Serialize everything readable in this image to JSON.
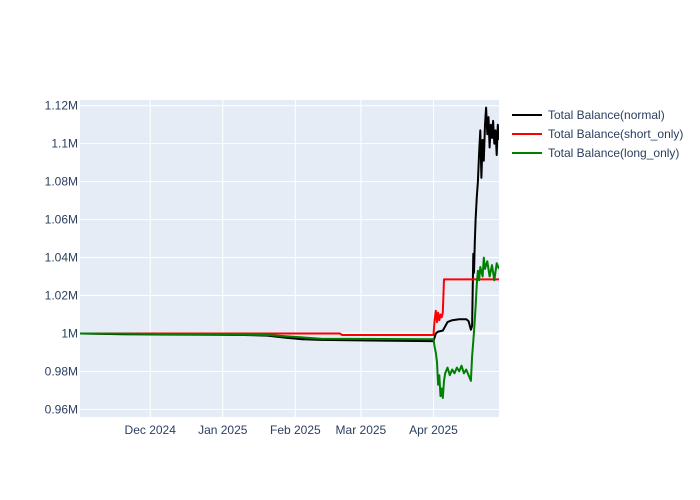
{
  "chart_data": {
    "type": "line",
    "title": "",
    "xlabel": "",
    "ylabel": "",
    "x_ticks": [
      {
        "date": "2024-12-01",
        "label": "Dec 2024"
      },
      {
        "date": "2025-01-01",
        "label": "Jan 2025"
      },
      {
        "date": "2025-02-01",
        "label": "Feb 2025"
      },
      {
        "date": "2025-03-01",
        "label": "Mar 2025"
      },
      {
        "date": "2025-04-01",
        "label": "Apr 2025"
      }
    ],
    "xlim": [
      "2024-11-01",
      "2025-04-29"
    ],
    "y_ticks": [
      {
        "value": 960000,
        "label": "0.96M"
      },
      {
        "value": 980000,
        "label": "0.98M"
      },
      {
        "value": 1000000,
        "label": "1M"
      },
      {
        "value": 1020000,
        "label": "1.02M"
      },
      {
        "value": 1040000,
        "label": "1.04M"
      },
      {
        "value": 1060000,
        "label": "1.06M"
      },
      {
        "value": 1080000,
        "label": "1.08M"
      },
      {
        "value": 1100000,
        "label": "1.1M"
      },
      {
        "value": 1120000,
        "label": "1.12M"
      }
    ],
    "ylim": [
      956000,
      1123000
    ],
    "grid": true,
    "legend_position": "top-right",
    "series": [
      {
        "name": "Total Balance(normal)",
        "color": "#000000",
        "points": [
          [
            "2024-11-01",
            1000000
          ],
          [
            "2024-11-20",
            999600
          ],
          [
            "2024-12-20",
            999400
          ],
          [
            "2025-01-10",
            999200
          ],
          [
            "2025-01-20",
            998900
          ],
          [
            "2025-01-28",
            997800
          ],
          [
            "2025-02-04",
            997000
          ],
          [
            "2025-02-12",
            996600
          ],
          [
            "2025-03-05",
            996300
          ],
          [
            "2025-03-31",
            996000
          ],
          [
            "2025-04-01",
            996000
          ],
          [
            "2025-04-02",
            1000000
          ],
          [
            "2025-04-03",
            1001000
          ],
          [
            "2025-04-05",
            1001500
          ],
          [
            "2025-04-07",
            1006000
          ],
          [
            "2025-04-09",
            1007000
          ],
          [
            "2025-04-12",
            1007500
          ],
          [
            "2025-04-15",
            1007500
          ],
          [
            "2025-04-16",
            1006500
          ],
          [
            "2025-04-17",
            1002000
          ],
          [
            "2025-04-17T12:00",
            1004000
          ],
          [
            "2025-04-18",
            1042000
          ],
          [
            "2025-04-18T08:00",
            1032000
          ],
          [
            "2025-04-18T16:00",
            1048000
          ],
          [
            "2025-04-19",
            1060000
          ],
          [
            "2025-04-19T12:00",
            1072000
          ],
          [
            "2025-04-20",
            1080000
          ],
          [
            "2025-04-20T12:00",
            1095000
          ],
          [
            "2025-04-21",
            1107000
          ],
          [
            "2025-04-21T12:00",
            1082000
          ],
          [
            "2025-04-22",
            1102000
          ],
          [
            "2025-04-22T12:00",
            1091000
          ],
          [
            "2025-04-23",
            1110000
          ],
          [
            "2025-04-23T12:00",
            1119000
          ],
          [
            "2025-04-24",
            1105000
          ],
          [
            "2025-04-24T12:00",
            1114000
          ],
          [
            "2025-04-25",
            1098000
          ],
          [
            "2025-04-25T12:00",
            1110000
          ],
          [
            "2025-04-26",
            1103000
          ],
          [
            "2025-04-26T12:00",
            1112000
          ],
          [
            "2025-04-27",
            1100000
          ],
          [
            "2025-04-27T12:00",
            1107000
          ],
          [
            "2025-04-28",
            1094000
          ],
          [
            "2025-04-28T12:00",
            1110000
          ],
          [
            "2025-04-29",
            1102000
          ]
        ]
      },
      {
        "name": "Total Balance(short_only)",
        "color": "#ff0000",
        "points": [
          [
            "2024-11-01",
            1000000
          ],
          [
            "2025-02-20",
            1000000
          ],
          [
            "2025-02-21",
            999200
          ],
          [
            "2025-03-31",
            999200
          ],
          [
            "2025-04-01",
            999200
          ],
          [
            "2025-04-01T12:00",
            1007000
          ],
          [
            "2025-04-02",
            1012000
          ],
          [
            "2025-04-02T12:00",
            1006000
          ],
          [
            "2025-04-03",
            1011000
          ],
          [
            "2025-04-03T12:00",
            1007000
          ],
          [
            "2025-04-04",
            1010000
          ],
          [
            "2025-04-04T12:00",
            1008500
          ],
          [
            "2025-04-05",
            1011000
          ],
          [
            "2025-04-05T12:00",
            1028500
          ],
          [
            "2025-04-29",
            1028500
          ]
        ]
      },
      {
        "name": "Total Balance(long_only)",
        "color": "#008000",
        "points": [
          [
            "2024-11-01",
            1000000
          ],
          [
            "2024-12-20",
            999600
          ],
          [
            "2025-01-20",
            999200
          ],
          [
            "2025-02-01",
            998200
          ],
          [
            "2025-02-12",
            997200
          ],
          [
            "2025-03-31",
            997000
          ],
          [
            "2025-04-01",
            997000
          ],
          [
            "2025-04-01T12:00",
            993000
          ],
          [
            "2025-04-02",
            990000
          ],
          [
            "2025-04-02T12:00",
            985000
          ],
          [
            "2025-04-03",
            973000
          ],
          [
            "2025-04-03T12:00",
            978000
          ],
          [
            "2025-04-04",
            967000
          ],
          [
            "2025-04-04T12:00",
            971000
          ],
          [
            "2025-04-05",
            966000
          ],
          [
            "2025-04-05T12:00",
            975000
          ],
          [
            "2025-04-06",
            979000
          ],
          [
            "2025-04-07",
            982000
          ],
          [
            "2025-04-08",
            978000
          ],
          [
            "2025-04-09",
            981000
          ],
          [
            "2025-04-10",
            979000
          ],
          [
            "2025-04-11",
            982000
          ],
          [
            "2025-04-12",
            980000
          ],
          [
            "2025-04-13",
            983000
          ],
          [
            "2025-04-14",
            979000
          ],
          [
            "2025-04-15",
            981000
          ],
          [
            "2025-04-16",
            978000
          ],
          [
            "2025-04-17",
            975000
          ],
          [
            "2025-04-17T12:00",
            988000
          ],
          [
            "2025-04-18",
            996000
          ],
          [
            "2025-04-18T12:00",
            1004000
          ],
          [
            "2025-04-19",
            1014000
          ],
          [
            "2025-04-19T12:00",
            1026000
          ],
          [
            "2025-04-20",
            1033000
          ],
          [
            "2025-04-20T12:00",
            1028000
          ],
          [
            "2025-04-21",
            1035000
          ],
          [
            "2025-04-22",
            1030000
          ],
          [
            "2025-04-22T12:00",
            1040000
          ],
          [
            "2025-04-23",
            1034000
          ],
          [
            "2025-04-24",
            1038000
          ],
          [
            "2025-04-25",
            1030000
          ],
          [
            "2025-04-26",
            1036000
          ],
          [
            "2025-04-27",
            1028000
          ],
          [
            "2025-04-28",
            1037000
          ],
          [
            "2025-04-29",
            1034000
          ]
        ]
      }
    ]
  }
}
